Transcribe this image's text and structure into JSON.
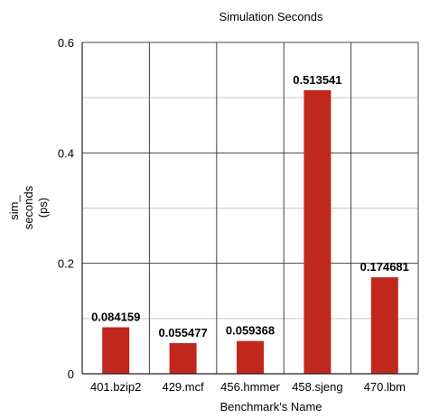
{
  "chart_data": {
    "type": "bar",
    "title": "Simulation Seconds",
    "xlabel": "Benchmark's Name",
    "ylabel_lines": [
      "sim_",
      "seconds",
      "(ps)"
    ],
    "categories": [
      "401.bzip2",
      "429.mcf",
      "456.hmmer",
      "458.sjeng",
      "470.lbm"
    ],
    "values": [
      0.084159,
      0.055477,
      0.059368,
      0.513541,
      0.174681
    ],
    "value_labels": [
      "0.084159",
      "0.055477",
      "0.059368",
      "0.513541",
      "0.174681"
    ],
    "ylim": [
      0,
      0.6
    ],
    "yticks": [
      0,
      0.2,
      0.4,
      0.6
    ],
    "ytick_labels": [
      "0",
      "0.2",
      "0.4",
      "0.6"
    ],
    "grid": true,
    "bar_color": "#c0281e"
  }
}
